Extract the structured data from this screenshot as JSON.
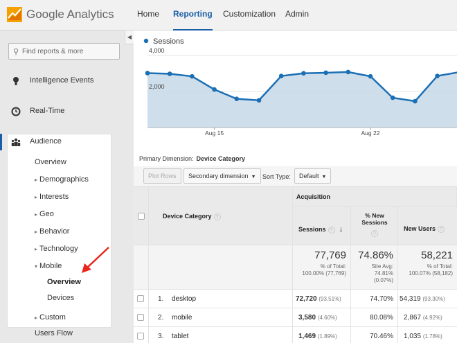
{
  "app": {
    "brand": "Google Analytics",
    "nav": [
      "Home",
      "Reporting",
      "Customization",
      "Admin"
    ],
    "active_nav": "Reporting"
  },
  "sidebar": {
    "search_placeholder": "Find reports & more",
    "sections": [
      {
        "label": "Intelligence Events",
        "icon": "lightbulb-icon"
      },
      {
        "label": "Real-Time",
        "icon": "clock-icon"
      },
      {
        "label": "Audience",
        "icon": "people-icon"
      }
    ],
    "audience_items": [
      {
        "label": "Overview",
        "expandable": false
      },
      {
        "label": "Demographics",
        "expandable": true
      },
      {
        "label": "Interests",
        "expandable": true
      },
      {
        "label": "Geo",
        "expandable": true
      },
      {
        "label": "Behavior",
        "expandable": true
      },
      {
        "label": "Technology",
        "expandable": true
      },
      {
        "label": "Mobile",
        "expandable": true,
        "expanded": true
      },
      {
        "label": "Overview",
        "active": true
      },
      {
        "label": "Devices"
      },
      {
        "label": "Custom",
        "expandable": true
      }
    ],
    "users_flow": "Users Flow"
  },
  "chart_data": {
    "type": "area",
    "series": [
      {
        "name": "Sessions",
        "color": "#1b6fb5",
        "values": [
          3020,
          2980,
          2840,
          2110,
          1590,
          1510,
          2860,
          3010,
          3040,
          3080,
          2840,
          1650,
          1460,
          2860,
          3080
        ]
      }
    ],
    "y_ticks": [
      "4,000",
      "2,000"
    ],
    "ylim": [
      0,
      4000
    ],
    "x_ticks": [
      "Aug 15",
      "Aug 22"
    ],
    "grid": true,
    "legend": "top-left"
  },
  "table": {
    "primary_dimension_label": "Primary Dimension:",
    "primary_dimension_value": "Device Category",
    "controls": {
      "plot_rows": "Plot Rows",
      "secondary_dimension": "Secondary dimension",
      "sort_type_label": "Sort Type:",
      "sort_type_value": "Default"
    },
    "group_header": "Acquisition",
    "columns": {
      "dimension": "Device Category",
      "sessions": "Sessions",
      "new_sessions": "% New Sessions",
      "new_users": "New Users"
    },
    "totals": {
      "sessions": "77,769",
      "sessions_sub1": "% of Total:",
      "sessions_sub2": "100.00% (77,769)",
      "new_sessions": "74.86%",
      "new_sessions_sub1": "Site Avg:",
      "new_sessions_sub2": "74.81%",
      "new_sessions_sub3": "(0.07%)",
      "new_users": "58,221",
      "new_users_sub1": "% of Total:",
      "new_users_sub2": "100.07% (58,182)"
    },
    "rows": [
      {
        "index": "1.",
        "device": "desktop",
        "sessions": "72,720",
        "sessions_pct": "(93.51%)",
        "new_sessions": "74.70%",
        "new_users": "54,319",
        "new_users_pct": "(93.30%)"
      },
      {
        "index": "2.",
        "device": "mobile",
        "sessions": "3,580",
        "sessions_pct": "(4.60%)",
        "new_sessions": "80.08%",
        "new_users": "2,867",
        "new_users_pct": "(4.92%)"
      },
      {
        "index": "3.",
        "device": "tablet",
        "sessions": "1,469",
        "sessions_pct": "(1.89%)",
        "new_sessions": "70.46%",
        "new_users": "1,035",
        "new_users_pct": "(1.78%)"
      }
    ]
  },
  "colors": {
    "accent": "#1a5ea8",
    "chart_line": "#1b6fb5",
    "chart_fill": "#c5d8e8",
    "arrow": "#e8281e",
    "logo_orange": "#e37400"
  }
}
